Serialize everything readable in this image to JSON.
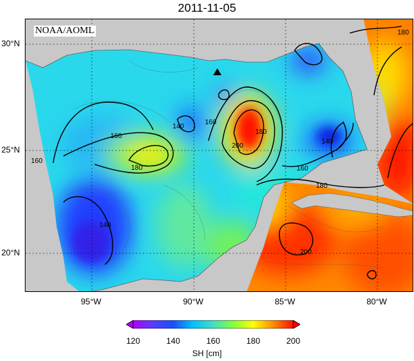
{
  "title": "2011-11-05",
  "credit": "NOAA/AOML",
  "map": {
    "lat_ticks": [
      "30°N",
      "25°N",
      "20°N"
    ],
    "lon_ticks": [
      "95°W",
      "90°W",
      "85°W",
      "80°W"
    ],
    "contour_labels": [
      "180",
      "160",
      "160",
      "180",
      "140",
      "160",
      "200",
      "180",
      "140",
      "160",
      "180",
      "140",
      "200"
    ],
    "marker": "triangle-station"
  },
  "colorbar": {
    "ticks": [
      "120",
      "140",
      "160",
      "180",
      "200"
    ],
    "label": "SH [cm]",
    "colors": [
      "#b000ff",
      "#5a3cff",
      "#1a50ff",
      "#00c0ff",
      "#40e0c0",
      "#80ff40",
      "#ffff00",
      "#ffa000",
      "#ff3000",
      "#ff0000"
    ]
  }
}
